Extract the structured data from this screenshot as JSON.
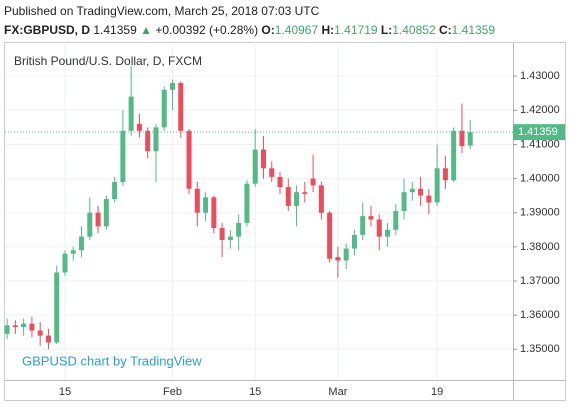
{
  "header": {
    "published": "Published on TradingView.com, March 25, 2018 07:03 UTC",
    "symbol": "FX:GBPUSD, D",
    "price": "1.41359",
    "change": "+0.00392 (+0.28%)",
    "open_label": "O:",
    "open": "1.40967",
    "high_label": "H:",
    "high": "1.41719",
    "low_label": "L:",
    "low": "1.40852",
    "close_label": "C:",
    "close": "1.41359"
  },
  "chart_data": {
    "type": "candlestick",
    "title": "British Pound/U.S. Dollar, D, FXCM",
    "watermark": "GBPUSD chart by TradingView",
    "up_color": "#53b987",
    "down_color": "#eb4d5c",
    "grid": true,
    "categories": [
      null,
      null,
      null,
      null,
      null,
      null,
      null,
      "15",
      null,
      null,
      null,
      null,
      null,
      null,
      null,
      null,
      null,
      null,
      null,
      null,
      "Feb",
      null,
      null,
      null,
      null,
      null,
      null,
      null,
      null,
      null,
      "15",
      null,
      null,
      null,
      null,
      null,
      null,
      null,
      null,
      null,
      "Mar",
      null,
      null,
      null,
      null,
      null,
      null,
      null,
      null,
      null,
      null,
      null,
      "19",
      null,
      null,
      null,
      null
    ],
    "open": [
      1.3545,
      1.357,
      1.3565,
      1.3575,
      1.3555,
      1.354,
      1.352,
      1.3725,
      1.378,
      1.379,
      1.383,
      1.39,
      1.386,
      1.394,
      1.399,
      1.414,
      1.416,
      1.414,
      1.408,
      1.415,
      1.426,
      1.428,
      1.414,
      1.397,
      1.39,
      1.3945,
      1.3855,
      1.382,
      1.383,
      1.387,
      1.3985,
      1.4085,
      1.403,
      1.4005,
      1.3975,
      1.392,
      1.396,
      1.4,
      1.398,
      1.39,
      1.377,
      1.376,
      1.3795,
      1.3835,
      1.389,
      1.388,
      1.383,
      1.385,
      1.3905,
      1.396,
      1.397,
      1.395,
      1.393,
      1.403,
      1.3995,
      1.414,
      1.40967
    ],
    "high": [
      1.359,
      1.3585,
      1.359,
      1.3595,
      1.358,
      1.356,
      1.3745,
      1.379,
      1.38,
      1.386,
      1.3945,
      1.392,
      1.395,
      1.4005,
      1.42,
      1.433,
      1.419,
      1.415,
      1.416,
      1.427,
      1.429,
      1.4285,
      1.4145,
      1.399,
      1.396,
      1.395,
      1.387,
      1.385,
      1.3895,
      1.3995,
      1.4145,
      1.4125,
      1.405,
      1.402,
      1.4,
      1.398,
      1.399,
      1.407,
      1.399,
      1.3905,
      1.38,
      1.381,
      1.385,
      1.393,
      1.392,
      1.3895,
      1.387,
      1.3925,
      1.4,
      1.399,
      1.4005,
      1.397,
      1.41,
      1.4065,
      1.415,
      1.422,
      1.41719
    ],
    "low": [
      1.353,
      1.3545,
      1.354,
      1.3535,
      1.351,
      1.35,
      1.3515,
      1.3715,
      1.376,
      1.377,
      1.382,
      1.384,
      1.385,
      1.393,
      1.398,
      1.4125,
      1.412,
      1.406,
      1.399,
      1.414,
      1.42,
      1.412,
      1.3955,
      1.386,
      1.3875,
      1.384,
      1.377,
      1.3795,
      1.379,
      1.386,
      1.3975,
      1.4,
      1.399,
      1.3955,
      1.3905,
      1.386,
      1.393,
      1.396,
      1.388,
      1.3755,
      1.371,
      1.3735,
      1.3775,
      1.382,
      1.386,
      1.379,
      1.38,
      1.3835,
      1.388,
      1.3935,
      1.392,
      1.3895,
      1.392,
      1.397,
      1.399,
      1.4075,
      1.40852
    ],
    "close": [
      1.357,
      1.3565,
      1.3575,
      1.3555,
      1.354,
      1.352,
      1.3725,
      1.378,
      1.379,
      1.383,
      1.39,
      1.386,
      1.394,
      1.399,
      1.414,
      1.424,
      1.414,
      1.408,
      1.415,
      1.426,
      1.428,
      1.414,
      1.397,
      1.39,
      1.3945,
      1.3855,
      1.382,
      1.383,
      1.387,
      1.3985,
      1.4085,
      1.403,
      1.4005,
      1.3975,
      1.392,
      1.396,
      1.3955,
      1.398,
      1.39,
      1.3765,
      1.376,
      1.3795,
      1.3835,
      1.389,
      1.388,
      1.383,
      1.385,
      1.3905,
      1.396,
      1.397,
      1.395,
      1.393,
      1.403,
      1.3995,
      1.414,
      1.4095,
      1.41359
    ],
    "ylim": [
      1.341,
      1.44
    ],
    "yticks": [
      {
        "value": 1.35,
        "label": "1.35000"
      },
      {
        "value": 1.36,
        "label": "1.36000"
      },
      {
        "value": 1.37,
        "label": "1.37000"
      },
      {
        "value": 1.38,
        "label": "1.38000"
      },
      {
        "value": 1.39,
        "label": "1.39000"
      },
      {
        "value": 1.4,
        "label": "1.40000"
      },
      {
        "value": 1.41,
        "label": "1.41000"
      },
      {
        "value": 1.42,
        "label": "1.42000"
      },
      {
        "value": 1.43,
        "label": "1.43000"
      }
    ],
    "last_price": {
      "value": 1.41359,
      "label": "1.41359"
    }
  }
}
